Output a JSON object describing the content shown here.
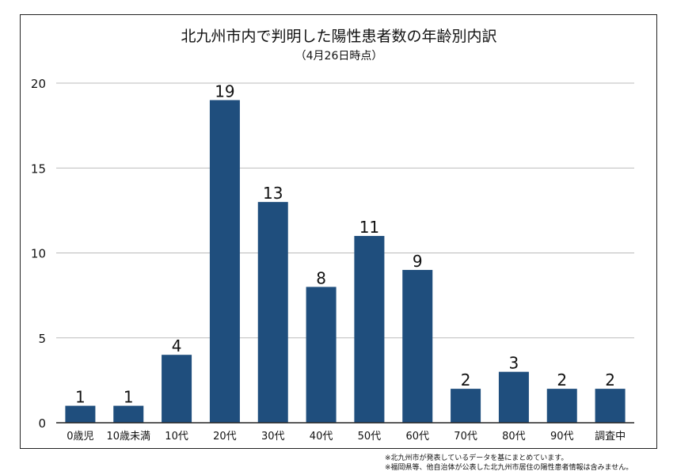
{
  "chart_data": {
    "type": "bar",
    "title": "北九州市内で判明した陽性患者数の年齢別内訳",
    "subtitle": "（4月26日時点）",
    "categories": [
      "0歳児",
      "10歳未満",
      "10代",
      "20代",
      "30代",
      "40代",
      "50代",
      "60代",
      "70代",
      "80代",
      "90代",
      "調査中"
    ],
    "values": [
      1,
      1,
      4,
      19,
      13,
      8,
      11,
      9,
      2,
      3,
      2,
      2
    ],
    "ylim": [
      0,
      20
    ],
    "yticks": [
      0,
      5,
      10,
      15,
      20
    ],
    "grid": true,
    "bar_color": "#1f4e7d",
    "data_labels": true
  },
  "notes": [
    "※北九州市が発表しているデータを基にまとめています。",
    "※福岡県等、他自治体が公表した北九州市居住の陽性患者情報は含みません。"
  ]
}
